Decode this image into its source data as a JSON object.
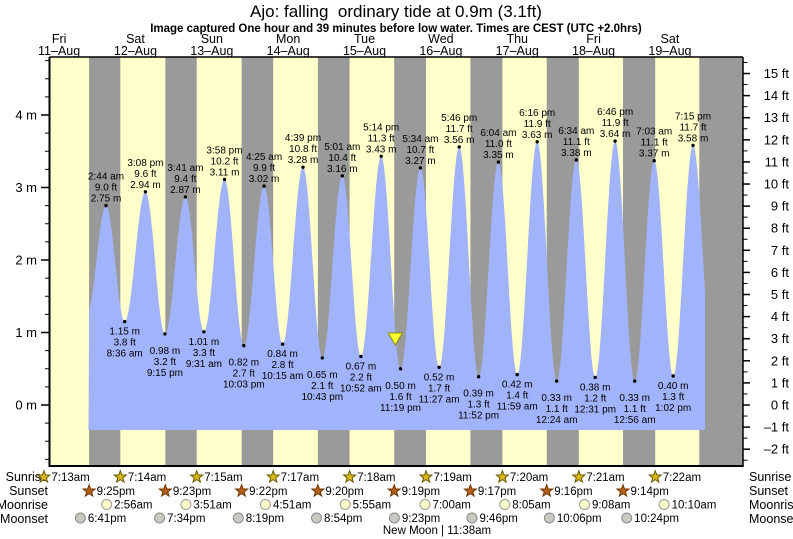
{
  "title": "Ajo: falling  ordinary tide at 0.9m (3.1ft)",
  "subtitle": "Image captured One hour and 39 minutes before low water. Times are CEST (UTC +2.0hrs)",
  "colors": {
    "day_stripe": "#ffffcc",
    "night_stripe": "#9a9a9a",
    "water": "#a1b3fb",
    "date_label": "#ee2c2c",
    "marker_fill": "#ffff2e",
    "marker_stroke": "#8f8f00",
    "sunrise_star": "#d9b91c",
    "sunrise_star_stroke": "#6b5b00",
    "sunset_star": "#b45f17",
    "sunset_star_stroke": "#6e3a05",
    "moonrise_circle": "#ffffcc",
    "moonrise_circle_stroke": "#9a9a9a",
    "moonset_circle": "#c9c9c2",
    "moonset_circle_stroke": "#8a8a8a"
  },
  "chart_data": {
    "type": "area",
    "title": "Ajo: falling  ordinary tide at 0.9m (3.1ft)",
    "x_axis_days": [
      {
        "weekday": "Fri",
        "date": "11–Aug"
      },
      {
        "weekday": "Sat",
        "date": "12–Aug"
      },
      {
        "weekday": "Sun",
        "date": "13–Aug"
      },
      {
        "weekday": "Mon",
        "date": "14–Aug"
      },
      {
        "weekday": "Tue",
        "date": "15–Aug"
      },
      {
        "weekday": "Wed",
        "date": "16–Aug"
      },
      {
        "weekday": "Thu",
        "date": "17–Aug"
      },
      {
        "weekday": "Fri",
        "date": "18–Aug"
      },
      {
        "weekday": "Sat",
        "date": "19–Aug"
      }
    ],
    "y_axis_left": {
      "unit": "m",
      "tick_labels": [
        "4 m",
        "3 m",
        "2 m",
        "1 m",
        "0 m"
      ],
      "tick_values": [
        4,
        3,
        2,
        1,
        0
      ]
    },
    "y_axis_right": {
      "unit": "ft",
      "max": 15,
      "min": -2,
      "tick_labels": [
        "15 ft",
        "14 ft",
        "13 ft",
        "12 ft",
        "11 ft",
        "10 ft",
        "9 ft",
        "8 ft",
        "7 ft",
        "6 ft",
        "5 ft",
        "4 ft",
        "3 ft",
        "2 ft",
        "1 ft",
        "0 ft",
        "–1 ft",
        "–2 ft"
      ]
    },
    "tides": [
      {
        "day": 1,
        "type": "high",
        "time": "2:44 am",
        "ft": "9.0 ft",
        "m": "2.75 m"
      },
      {
        "day": 1,
        "type": "low",
        "time": "8:36 am",
        "ft": "3.8 ft",
        "m": "1.15 m"
      },
      {
        "day": 1,
        "type": "high",
        "time": "3:08 pm",
        "ft": "9.6 ft",
        "m": "2.94 m"
      },
      {
        "day": 1,
        "type": "low",
        "time": "9:15 pm",
        "ft": "3.2 ft",
        "m": "0.98 m"
      },
      {
        "day": 2,
        "type": "high",
        "time": "3:41 am",
        "ft": "9.4 ft",
        "m": "2.87 m"
      },
      {
        "day": 2,
        "type": "low",
        "time": "9:31 am",
        "ft": "3.3 ft",
        "m": "1.01 m"
      },
      {
        "day": 2,
        "type": "high",
        "time": "3:58 pm",
        "ft": "10.2 ft",
        "m": "3.11 m"
      },
      {
        "day": 2,
        "type": "low",
        "time": "10:03 pm",
        "ft": "2.7 ft",
        "m": "0.82 m"
      },
      {
        "day": 3,
        "type": "high",
        "time": "4:25 am",
        "ft": "9.9 ft",
        "m": "3.02 m"
      },
      {
        "day": 3,
        "type": "low",
        "time": "10:15 am",
        "ft": "2.8 ft",
        "m": "0.84 m"
      },
      {
        "day": 3,
        "type": "high",
        "time": "4:39 pm",
        "ft": "10.8 ft",
        "m": "3.28 m"
      },
      {
        "day": 3,
        "type": "low",
        "time": "10:43 pm",
        "ft": "2.1 ft",
        "m": "0.65 m"
      },
      {
        "day": 4,
        "type": "high",
        "time": "5:01 am",
        "ft": "10.4 ft",
        "m": "3.16 m"
      },
      {
        "day": 4,
        "type": "low",
        "time": "10:52 am",
        "ft": "2.2 ft",
        "m": "0.67 m"
      },
      {
        "day": 4,
        "type": "high",
        "time": "5:14 pm",
        "ft": "11.3 ft",
        "m": "3.43 m"
      },
      {
        "day": 4,
        "type": "low",
        "time": "11:19 pm",
        "ft": "1.6 ft",
        "m": "0.50 m"
      },
      {
        "day": 5,
        "type": "high",
        "time": "5:34 am",
        "ft": "10.7 ft",
        "m": "3.27 m"
      },
      {
        "day": 5,
        "type": "low",
        "time": "11:27 am",
        "ft": "1.7 ft",
        "m": "0.52 m"
      },
      {
        "day": 5,
        "type": "high",
        "time": "5:46 pm",
        "ft": "11.7 ft",
        "m": "3.56 m"
      },
      {
        "day": 5,
        "type": "low",
        "time": "11:52 pm",
        "ft": "1.3 ft",
        "m": "0.39 m"
      },
      {
        "day": 6,
        "type": "high",
        "time": "6:04 am",
        "ft": "11.0 ft",
        "m": "3.35 m"
      },
      {
        "day": 6,
        "type": "low",
        "time": "11:59 am",
        "ft": "1.4 ft",
        "m": "0.42 m"
      },
      {
        "day": 6,
        "type": "high",
        "time": "6:16 pm",
        "ft": "11.9 ft",
        "m": "3.63 m"
      },
      {
        "day": 7,
        "type": "low",
        "time": "12:24 am",
        "ft": "1.1 ft",
        "m": "0.33 m"
      },
      {
        "day": 7,
        "type": "high",
        "time": "6:34 am",
        "ft": "11.1 ft",
        "m": "3.38 m"
      },
      {
        "day": 7,
        "type": "low",
        "time": "12:31 pm",
        "ft": "1.2 ft",
        "m": "0.38 m"
      },
      {
        "day": 7,
        "type": "high",
        "time": "6:46 pm",
        "ft": "11.9 ft",
        "m": "3.64 m"
      },
      {
        "day": 8,
        "type": "low",
        "time": "12:56 am",
        "ft": "1.1 ft",
        "m": "0.33 m"
      },
      {
        "day": 8,
        "type": "high",
        "time": "7:03 am",
        "ft": "11.1 ft",
        "m": "3.37 m"
      },
      {
        "day": 8,
        "type": "low",
        "time": "1:02 pm",
        "ft": "1.3 ft",
        "m": "0.40 m"
      },
      {
        "day": 8,
        "type": "high",
        "time": "7:15 pm",
        "ft": "11.7 ft",
        "m": "3.58 m"
      }
    ],
    "current_marker": {
      "day": 4,
      "time": "9:40 pm",
      "height_m": 0.9,
      "state": "falling"
    }
  },
  "almanac": {
    "row_labels_left": [
      "Sunrise",
      "Sunset",
      "Moonrise",
      "Moonset"
    ],
    "row_labels_right": [
      "Sunrise",
      "Sunset",
      "Moonrise",
      "Moonset"
    ],
    "sunrise": [
      {
        "day": 0,
        "time": "7:13am"
      },
      {
        "day": 1,
        "time": "7:14am"
      },
      {
        "day": 2,
        "time": "7:15am"
      },
      {
        "day": 3,
        "time": "7:17am"
      },
      {
        "day": 4,
        "time": "7:18am"
      },
      {
        "day": 5,
        "time": "7:19am"
      },
      {
        "day": 6,
        "time": "7:20am"
      },
      {
        "day": 7,
        "time": "7:21am"
      },
      {
        "day": 8,
        "time": "7:22am"
      }
    ],
    "sunset": [
      {
        "day": 0,
        "time": "9:25pm"
      },
      {
        "day": 1,
        "time": "9:23pm"
      },
      {
        "day": 2,
        "time": "9:22pm"
      },
      {
        "day": 3,
        "time": "9:20pm"
      },
      {
        "day": 4,
        "time": "9:19pm"
      },
      {
        "day": 5,
        "time": "9:17pm"
      },
      {
        "day": 6,
        "time": "9:16pm"
      },
      {
        "day": 7,
        "time": "9:14pm"
      }
    ],
    "moonrise": [
      {
        "day": 1,
        "time": "2:56am"
      },
      {
        "day": 2,
        "time": "3:51am"
      },
      {
        "day": 3,
        "time": "4:51am"
      },
      {
        "day": 4,
        "time": "5:55am"
      },
      {
        "day": 5,
        "time": "7:00am"
      },
      {
        "day": 6,
        "time": "8:05am"
      },
      {
        "day": 7,
        "time": "9:08am"
      },
      {
        "day": 8,
        "time": "10:10am"
      }
    ],
    "moonset": [
      {
        "day": 0,
        "time": "6:41pm"
      },
      {
        "day": 1,
        "time": "7:34pm"
      },
      {
        "day": 2,
        "time": "8:19pm"
      },
      {
        "day": 3,
        "time": "8:54pm"
      },
      {
        "day": 4,
        "time": "9:23pm"
      },
      {
        "day": 5,
        "time": "9:46pm"
      },
      {
        "day": 6,
        "time": "10:06pm"
      },
      {
        "day": 7,
        "time": "10:24pm"
      }
    ],
    "new_moon": "New Moon | 11:38am"
  }
}
